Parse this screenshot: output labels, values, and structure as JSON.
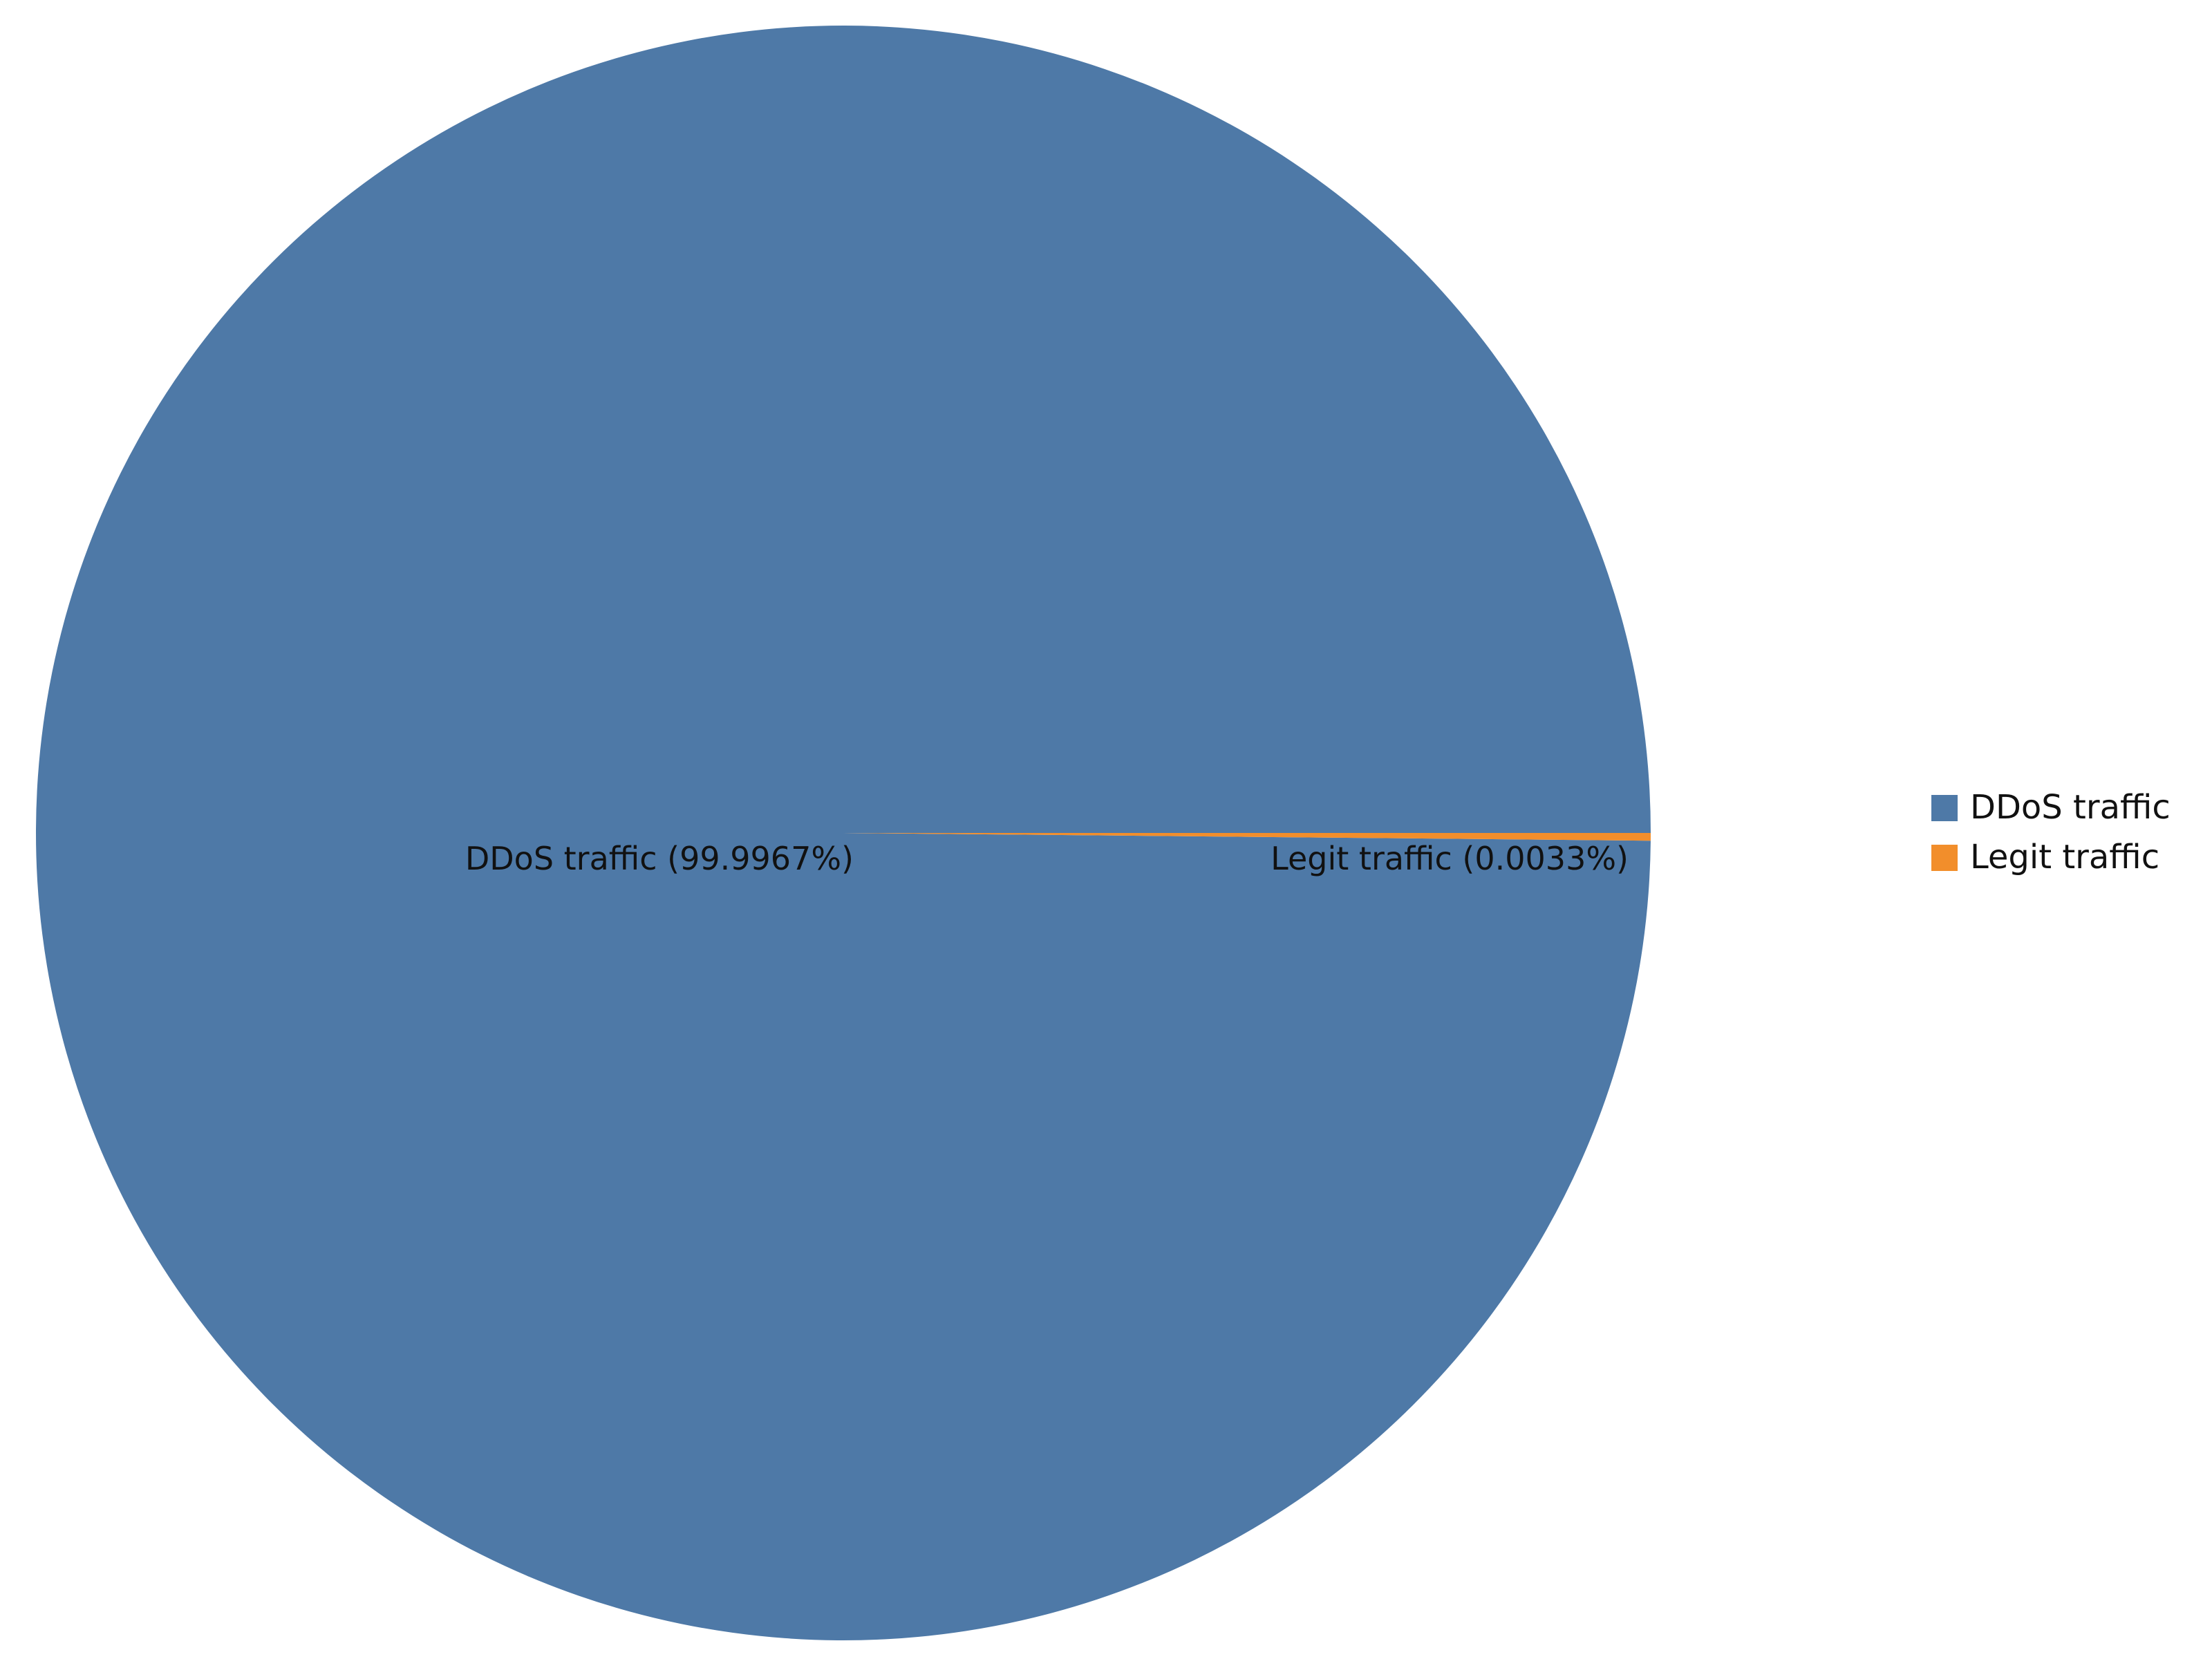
{
  "chart_data": {
    "type": "pie",
    "slices": [
      {
        "label": "DDoS traffic",
        "value": 99.9967,
        "display": "DDoS traffic (99.9967%)",
        "color": "#4e79a7"
      },
      {
        "label": "Legit traffic",
        "value": 0.0033,
        "display": "Legit traffic (0.0033%)",
        "color": "#f28e2b"
      }
    ],
    "legend": {
      "placement": "right",
      "items": [
        {
          "label": "DDoS traffic",
          "color": "#4e79a7"
        },
        {
          "label": "Legit traffic",
          "color": "#f28e2b"
        }
      ]
    }
  }
}
